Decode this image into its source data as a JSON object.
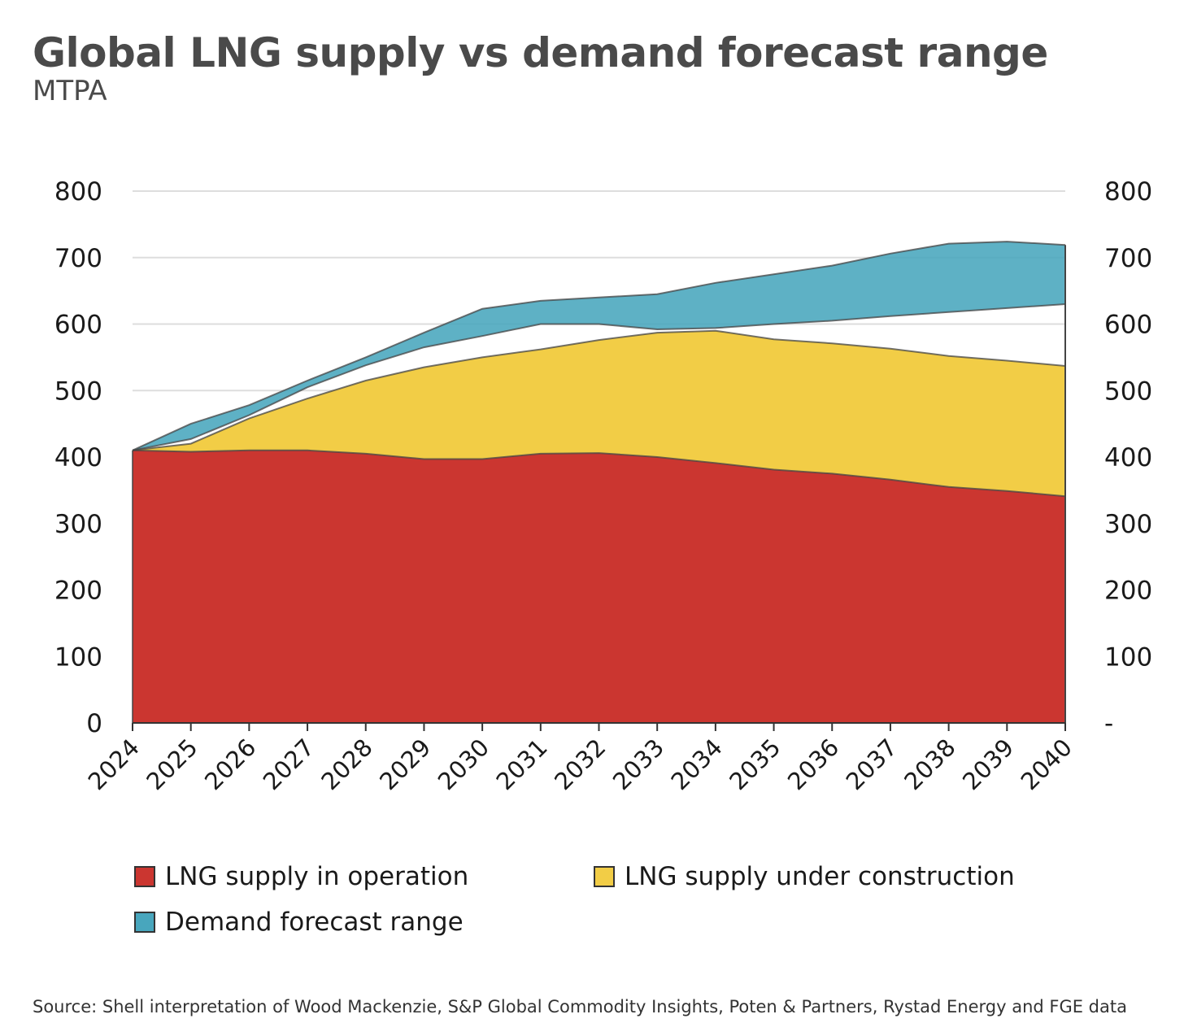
{
  "title": "Global LNG supply vs demand forecast range",
  "subtitle": "MTPA",
  "source": "Source: Shell interpretation of Wood Mackenzie, S&P Global Commodity Insights, Poten & Partners, Rystad Energy and FGE data",
  "colors": {
    "operation": "#cb3630",
    "construction": "#f2cd46",
    "demand": "#48a6bd",
    "grid": "#dddddd",
    "axis": "#333333"
  },
  "chart_data": {
    "type": "area",
    "title": "Global LNG supply vs demand forecast range",
    "ylabel": "MTPA",
    "ylim": [
      0,
      800
    ],
    "yticks_left": [
      "0",
      "100",
      "200",
      "300",
      "400",
      "500",
      "600",
      "700",
      "800"
    ],
    "yticks_right": [
      "-",
      "100",
      "200",
      "300",
      "400",
      "500",
      "600",
      "700",
      "800"
    ],
    "ytick_values": [
      0,
      100,
      200,
      300,
      400,
      500,
      600,
      700,
      800
    ],
    "categories": [
      "2024",
      "2025",
      "2026",
      "2027",
      "2028",
      "2029",
      "2030",
      "2031",
      "2032",
      "2033",
      "2034",
      "2035",
      "2036",
      "2037",
      "2038",
      "2039",
      "2040"
    ],
    "series": [
      {
        "name": "LNG supply in operation",
        "key": "operation",
        "values": [
          410,
          408,
          410,
          410,
          405,
          397,
          397,
          405,
          406,
          400,
          391,
          381,
          375,
          366,
          355,
          349,
          341
        ]
      },
      {
        "name": "LNG supply under construction",
        "key": "construction",
        "stacked_total": [
          410,
          420,
          458,
          488,
          515,
          535,
          550,
          562,
          576,
          587,
          590,
          577,
          571,
          563,
          552,
          545,
          537
        ]
      },
      {
        "name": "Demand forecast range",
        "key": "demand",
        "low": [
          410,
          427,
          463,
          505,
          538,
          565,
          582,
          600,
          600,
          592,
          594,
          600,
          605,
          612,
          618,
          624,
          630
        ],
        "high": [
          410,
          450,
          478,
          515,
          550,
          587,
          623,
          635,
          640,
          645,
          662,
          675,
          688,
          706,
          721,
          724,
          719
        ]
      }
    ],
    "legend": [
      "LNG supply in operation",
      "LNG supply under construction",
      "Demand forecast range"
    ],
    "grid": true,
    "legend_position": "bottom"
  }
}
